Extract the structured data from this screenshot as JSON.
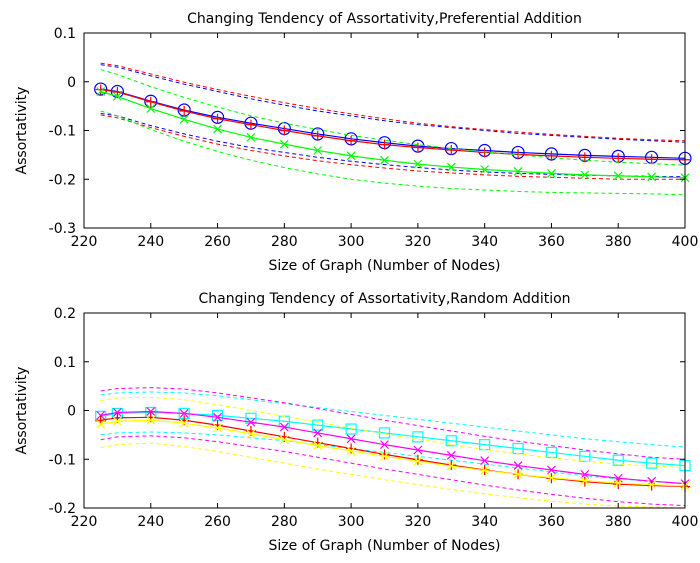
{
  "chart_data": [
    {
      "type": "line",
      "title": "Changing Tendency of Assortativity,Preferential Addition",
      "xlabel": "Size of Graph (Number of Nodes)",
      "ylabel": "Assortativity",
      "xlim": [
        220,
        400
      ],
      "ylim": [
        -0.3,
        0.1
      ],
      "xticks": [
        220,
        240,
        260,
        280,
        300,
        320,
        340,
        360,
        380,
        400
      ],
      "yticks": [
        -0.3,
        -0.2,
        -0.1,
        0,
        0.1
      ],
      "xtick_labels": [
        "220",
        "240",
        "260",
        "280",
        "300",
        "320",
        "340",
        "360",
        "380",
        "400"
      ],
      "ytick_labels": [
        "-0.3",
        "-0.2",
        "-0.1",
        "0",
        "0.1"
      ],
      "grid": false,
      "legend": "none",
      "x": [
        225,
        230,
        240,
        250,
        260,
        270,
        280,
        290,
        300,
        310,
        320,
        330,
        340,
        350,
        360,
        370,
        380,
        390,
        400
      ],
      "series": [
        {
          "color": "#0000ff",
          "marker": "circle",
          "values": [
            -0.015,
            -0.02,
            -0.04,
            -0.058,
            -0.073,
            -0.085,
            -0.096,
            -0.107,
            -0.117,
            -0.125,
            -0.132,
            -0.137,
            -0.141,
            -0.145,
            -0.148,
            -0.151,
            -0.153,
            -0.155,
            -0.157
          ]
        },
        {
          "color": "#0000ff",
          "style": "dashed",
          "values": [
            0.035,
            0.03,
            0.012,
            -0.005,
            -0.02,
            -0.035,
            -0.048,
            -0.06,
            -0.07,
            -0.08,
            -0.088,
            -0.094,
            -0.1,
            -0.106,
            -0.11,
            -0.114,
            -0.118,
            -0.121,
            -0.124
          ]
        },
        {
          "color": "#0000ff",
          "style": "dashed",
          "values": [
            -0.065,
            -0.07,
            -0.09,
            -0.107,
            -0.122,
            -0.135,
            -0.145,
            -0.155,
            -0.163,
            -0.17,
            -0.176,
            -0.181,
            -0.185,
            -0.188,
            -0.19,
            -0.192,
            -0.193,
            -0.194,
            -0.195
          ]
        },
        {
          "color": "#ff0000",
          "marker": "plus",
          "values": [
            -0.016,
            -0.021,
            -0.041,
            -0.06,
            -0.076,
            -0.088,
            -0.1,
            -0.111,
            -0.121,
            -0.129,
            -0.135,
            -0.14,
            -0.145,
            -0.149,
            -0.152,
            -0.155,
            -0.157,
            -0.159,
            -0.16
          ]
        },
        {
          "color": "#ff0000",
          "style": "dashed",
          "values": [
            0.038,
            0.033,
            0.016,
            -0.001,
            -0.016,
            -0.03,
            -0.043,
            -0.055,
            -0.066,
            -0.076,
            -0.085,
            -0.092,
            -0.098,
            -0.103,
            -0.108,
            -0.112,
            -0.116,
            -0.119,
            -0.121
          ]
        },
        {
          "color": "#ff0000",
          "style": "dashed",
          "values": [
            -0.068,
            -0.074,
            -0.094,
            -0.112,
            -0.128,
            -0.141,
            -0.152,
            -0.162,
            -0.17,
            -0.177,
            -0.183,
            -0.187,
            -0.191,
            -0.194,
            -0.196,
            -0.198,
            -0.2,
            -0.2,
            -0.2
          ]
        },
        {
          "color": "#00ff00",
          "marker": "x",
          "values": [
            -0.02,
            -0.03,
            -0.055,
            -0.077,
            -0.097,
            -0.114,
            -0.128,
            -0.141,
            -0.152,
            -0.161,
            -0.169,
            -0.175,
            -0.18,
            -0.184,
            -0.188,
            -0.191,
            -0.193,
            -0.195,
            -0.197
          ]
        },
        {
          "color": "#00ff00",
          "style": "dashed",
          "values": [
            0.025,
            0.015,
            -0.01,
            -0.032,
            -0.052,
            -0.07,
            -0.085,
            -0.098,
            -0.11,
            -0.12,
            -0.129,
            -0.137,
            -0.144,
            -0.15,
            -0.156,
            -0.161,
            -0.165,
            -0.168,
            -0.171
          ]
        },
        {
          "color": "#00ff00",
          "style": "dashed",
          "values": [
            -0.06,
            -0.07,
            -0.098,
            -0.122,
            -0.143,
            -0.161,
            -0.176,
            -0.189,
            -0.2,
            -0.208,
            -0.214,
            -0.219,
            -0.222,
            -0.225,
            -0.227,
            -0.228,
            -0.229,
            -0.23,
            -0.232
          ]
        }
      ]
    },
    {
      "type": "line",
      "title": "Changing Tendency of Assortativity,Random Addition",
      "xlabel": "Size of Graph (Number of Nodes)",
      "ylabel": "Assortativity",
      "xlim": [
        220,
        400
      ],
      "ylim": [
        -0.2,
        0.2
      ],
      "xticks": [
        220,
        240,
        260,
        280,
        300,
        320,
        340,
        360,
        380,
        400
      ],
      "yticks": [
        -0.2,
        -0.1,
        0,
        0.1,
        0.2
      ],
      "xtick_labels": [
        "220",
        "240",
        "260",
        "280",
        "300",
        "320",
        "340",
        "360",
        "380",
        "400"
      ],
      "ytick_labels": [
        "-0.2",
        "-0.1",
        "0",
        "0.1",
        "0.2"
      ],
      "grid": false,
      "legend": "none",
      "x": [
        225,
        230,
        240,
        250,
        260,
        270,
        280,
        290,
        300,
        310,
        320,
        330,
        340,
        350,
        360,
        370,
        380,
        390,
        400
      ],
      "series": [
        {
          "color": "#00ffff",
          "marker": "square",
          "values": [
            -0.012,
            -0.006,
            -0.004,
            -0.006,
            -0.01,
            -0.016,
            -0.022,
            -0.03,
            -0.038,
            -0.046,
            -0.054,
            -0.062,
            -0.07,
            -0.078,
            -0.086,
            -0.094,
            -0.102,
            -0.108,
            -0.113
          ]
        },
        {
          "color": "#00ffff",
          "style": "dashed",
          "values": [
            0.032,
            0.036,
            0.038,
            0.036,
            0.03,
            0.022,
            0.014,
            0.006,
            -0.002,
            -0.01,
            -0.018,
            -0.026,
            -0.034,
            -0.042,
            -0.05,
            -0.058,
            -0.064,
            -0.07,
            -0.075
          ]
        },
        {
          "color": "#00ffff",
          "style": "dashed",
          "values": [
            -0.05,
            -0.046,
            -0.044,
            -0.046,
            -0.05,
            -0.056,
            -0.062,
            -0.07,
            -0.078,
            -0.086,
            -0.094,
            -0.102,
            -0.11,
            -0.118,
            -0.126,
            -0.134,
            -0.14,
            -0.146,
            -0.15
          ]
        },
        {
          "color": "#ff00ff",
          "marker": "x",
          "values": [
            -0.01,
            -0.004,
            -0.002,
            -0.006,
            -0.014,
            -0.024,
            -0.034,
            -0.046,
            -0.058,
            -0.07,
            -0.081,
            -0.092,
            -0.103,
            -0.113,
            -0.122,
            -0.131,
            -0.139,
            -0.145,
            -0.15
          ]
        },
        {
          "color": "#ff00ff",
          "style": "dashed",
          "values": [
            0.04,
            0.045,
            0.047,
            0.044,
            0.036,
            0.026,
            0.016,
            0.004,
            -0.008,
            -0.02,
            -0.031,
            -0.042,
            -0.053,
            -0.063,
            -0.072,
            -0.081,
            -0.089,
            -0.096,
            -0.1
          ]
        },
        {
          "color": "#ff00ff",
          "style": "dashed",
          "values": [
            -0.06,
            -0.054,
            -0.052,
            -0.056,
            -0.064,
            -0.074,
            -0.084,
            -0.096,
            -0.108,
            -0.12,
            -0.131,
            -0.142,
            -0.153,
            -0.163,
            -0.172,
            -0.18,
            -0.187,
            -0.192,
            -0.195
          ]
        },
        {
          "color": "#ff0000",
          "marker": "plus",
          "values": [
            -0.02,
            -0.015,
            -0.014,
            -0.02,
            -0.03,
            -0.042,
            -0.054,
            -0.066,
            -0.078,
            -0.09,
            -0.101,
            -0.112,
            -0.122,
            -0.131,
            -0.139,
            -0.146,
            -0.151,
            -0.154,
            -0.156
          ]
        },
        {
          "color": "#ffff00",
          "marker": "x",
          "values": [
            -0.028,
            -0.022,
            -0.02,
            -0.026,
            -0.036,
            -0.048,
            -0.06,
            -0.072,
            -0.083,
            -0.094,
            -0.104,
            -0.114,
            -0.123,
            -0.131,
            -0.138,
            -0.144,
            -0.149,
            -0.152,
            -0.155
          ]
        },
        {
          "color": "#ffff00",
          "style": "dashed",
          "values": [
            0.02,
            0.026,
            0.027,
            0.022,
            0.012,
            0.0,
            -0.012,
            -0.024,
            -0.036,
            -0.048,
            -0.059,
            -0.07,
            -0.08,
            -0.089,
            -0.097,
            -0.104,
            -0.11,
            -0.114,
            -0.117
          ]
        },
        {
          "color": "#ffff00",
          "style": "dashed",
          "values": [
            -0.076,
            -0.07,
            -0.067,
            -0.074,
            -0.084,
            -0.096,
            -0.108,
            -0.12,
            -0.131,
            -0.142,
            -0.152,
            -0.162,
            -0.171,
            -0.179,
            -0.186,
            -0.192,
            -0.196,
            -0.198,
            -0.2
          ]
        }
      ]
    }
  ]
}
